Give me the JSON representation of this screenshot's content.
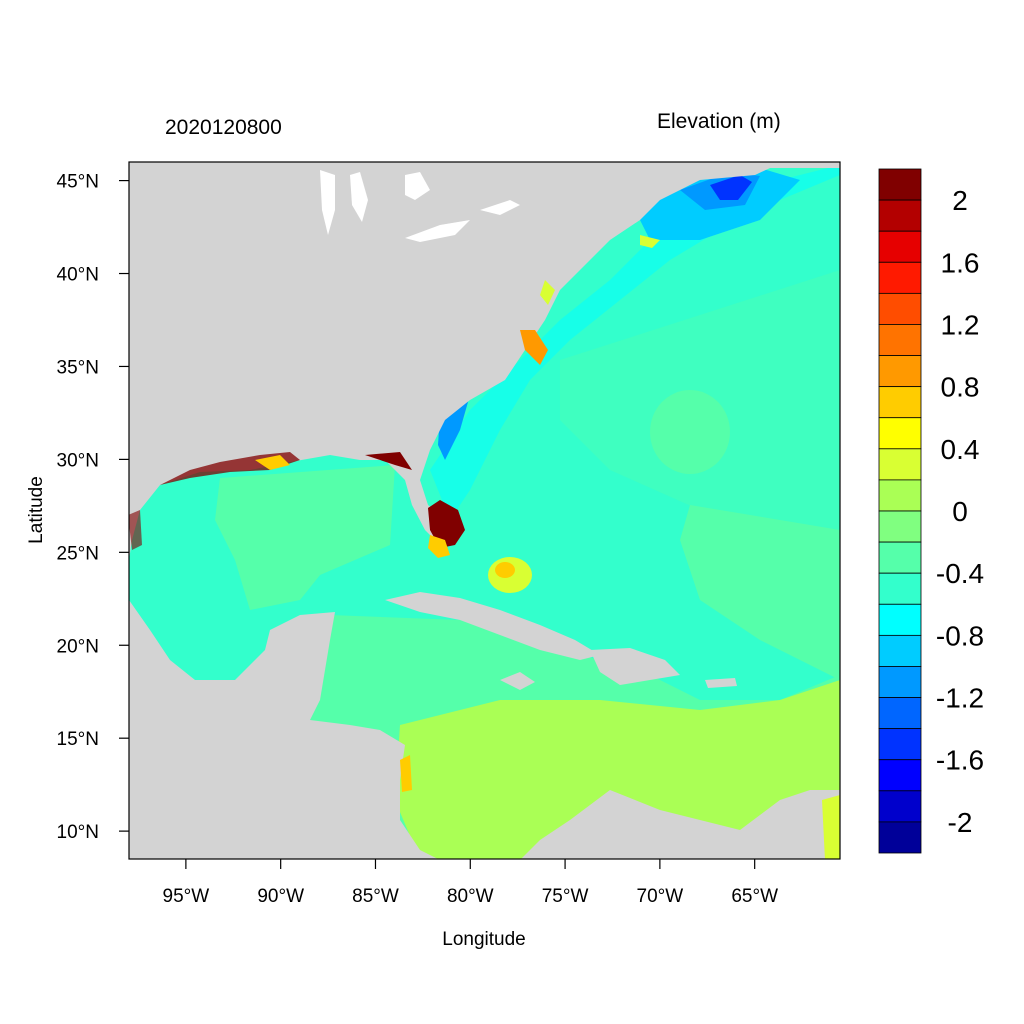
{
  "map": {
    "date_label": "20201208​00",
    "variable_label": "Elevation (m)",
    "x_axis_label": "Longitude",
    "y_axis_label": "Latitude",
    "lon_range": [
      -98,
      -60.5
    ],
    "lat_range": [
      8.5,
      46
    ],
    "lon_ticks": [
      {
        "value": -95,
        "label": "95°W"
      },
      {
        "value": -90,
        "label": "90°W"
      },
      {
        "value": -85,
        "label": "85°W"
      },
      {
        "value": -80,
        "label": "80°W"
      },
      {
        "value": -75,
        "label": "75°W"
      },
      {
        "value": -70,
        "label": "70°W"
      },
      {
        "value": -65,
        "label": "65°W"
      }
    ],
    "lat_ticks": [
      {
        "value": 45,
        "label": "45°N"
      },
      {
        "value": 40,
        "label": "40°N"
      },
      {
        "value": 35,
        "label": "35°N"
      },
      {
        "value": 30,
        "label": "30°N"
      },
      {
        "value": 25,
        "label": "25°N"
      },
      {
        "value": 20,
        "label": "20°N"
      },
      {
        "value": 15,
        "label": "15°N"
      },
      {
        "value": 10,
        "label": "10°N"
      }
    ],
    "land_color": "#d3d3d3"
  },
  "colorbar": {
    "colors": [
      "#800000",
      "#b30000",
      "#e60000",
      "#ff1a00",
      "#ff4d00",
      "#ff7300",
      "#ff9900",
      "#ffcc00",
      "#ffff00",
      "#d9ff33",
      "#aaff55",
      "#80ff80",
      "#55ffaa",
      "#33ffcc",
      "#00ffff",
      "#00ccff",
      "#0099ff",
      "#0066ff",
      "#0033ff",
      "#0000ff",
      "#0000cc",
      "#000099"
    ],
    "labels": [
      "2",
      "1.6",
      "1.2",
      "0.8",
      "0.4",
      "0",
      "-0.4",
      "-0.8",
      "-1.2",
      "-1.6",
      "-2"
    ],
    "label_values": [
      2,
      1.6,
      1.2,
      0.8,
      0.4,
      0,
      -0.4,
      -0.8,
      -1.2,
      -1.6,
      -2
    ],
    "max": 2.2,
    "min": -2.2
  }
}
